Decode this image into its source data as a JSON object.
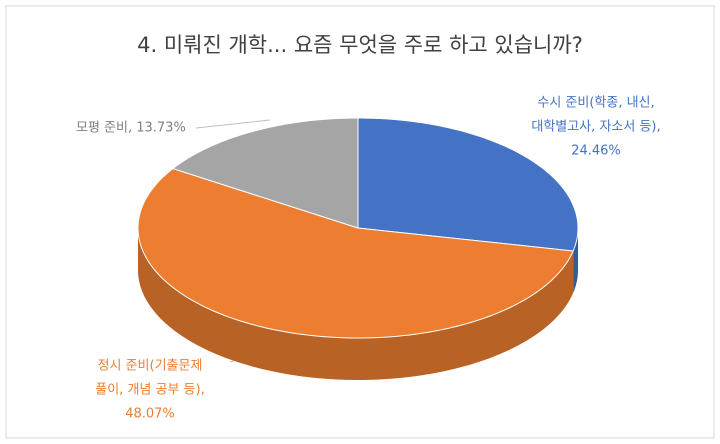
{
  "chart_data": {
    "type": "pie3d",
    "title": "4. 미뤄진 개학... 요즘 무엇을 주로 하고 있습니까?",
    "values": [
      24.46,
      48.07,
      13.73
    ],
    "value_labels": [
      [
        "수시 준비(학종, 내신,",
        "대학별고사, 자소서 등),",
        "24.46%"
      ],
      [
        "정시 준비(기출문제",
        "풀이, 개념 공부 등),",
        "48.07%"
      ],
      [
        "모평 준비, 13.73%"
      ]
    ],
    "colors": [
      "#4472c4",
      "#ed7d31",
      "#a5a5a5"
    ]
  }
}
